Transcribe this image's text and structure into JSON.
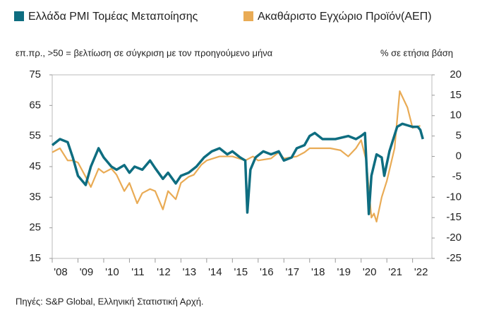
{
  "chart_data": {
    "type": "line",
    "ylabel": "επ.πρ., >50 = βελτίωση σε σύγκριση με τον προηγούμενο μήνα",
    "y2label": "% σε ετήσια βάση",
    "source": "Πηγές: S&P Global, Ελληνική Στατιστική Αρχή.",
    "xlim": [
      2008,
      2022.75
    ],
    "xticks": [
      {
        "value": 2008,
        "label": "'08"
      },
      {
        "value": 2009,
        "label": "'09"
      },
      {
        "value": 2010,
        "label": "'10"
      },
      {
        "value": 2011,
        "label": "'11"
      },
      {
        "value": 2012,
        "label": "'12"
      },
      {
        "value": 2013,
        "label": "'13"
      },
      {
        "value": 2014,
        "label": "'14"
      },
      {
        "value": 2015,
        "label": "'15"
      },
      {
        "value": 2016,
        "label": "'16"
      },
      {
        "value": 2017,
        "label": "'17"
      },
      {
        "value": 2018,
        "label": "'18"
      },
      {
        "value": 2019,
        "label": "'19"
      },
      {
        "value": 2020,
        "label": "'20"
      },
      {
        "value": 2021,
        "label": "'21"
      },
      {
        "value": 2022,
        "label": "'22"
      }
    ],
    "ylim": [
      15,
      75
    ],
    "yticks": [
      75,
      65,
      55,
      45,
      35,
      25,
      15
    ],
    "y2lim": [
      -25,
      20
    ],
    "y2ticks": [
      20,
      15,
      10,
      5,
      0,
      -5,
      -10,
      -15,
      -20,
      -25
    ],
    "grid": false,
    "series": [
      {
        "name": "Ελλάδα PMI Τομέας Μεταποίησης",
        "color": "#0e6d80",
        "x": [
          2008.0,
          2008.3,
          2008.6,
          2008.8,
          2009.0,
          2009.2,
          2009.3,
          2009.5,
          2009.8,
          2010.0,
          2010.3,
          2010.5,
          2010.8,
          2011.0,
          2011.2,
          2011.5,
          2011.8,
          2012.0,
          2012.3,
          2012.5,
          2012.8,
          2013.0,
          2013.3,
          2013.6,
          2013.9,
          2014.2,
          2014.5,
          2014.8,
          2015.0,
          2015.3,
          2015.5,
          2015.58,
          2015.7,
          2015.9,
          2016.2,
          2016.5,
          2016.8,
          2017.0,
          2017.3,
          2017.5,
          2017.8,
          2018.0,
          2018.2,
          2018.5,
          2018.8,
          2019.0,
          2019.5,
          2019.8,
          2020.0,
          2020.15,
          2020.3,
          2020.4,
          2020.6,
          2020.8,
          2020.9,
          2021.1,
          2021.4,
          2021.6,
          2021.8,
          2022.0,
          2022.2,
          2022.3,
          2022.4
        ],
        "values": [
          52,
          54,
          53,
          48,
          42,
          40,
          39,
          45,
          51,
          48,
          45,
          44,
          45.5,
          43,
          45,
          44,
          47,
          44.5,
          41,
          43,
          39.5,
          42,
          43,
          45,
          48,
          50,
          51,
          49,
          50,
          48,
          47,
          30,
          44,
          48,
          50,
          49,
          50,
          47,
          48,
          51,
          52,
          55,
          56,
          54,
          54,
          54,
          55,
          54,
          55,
          56,
          29.5,
          42,
          49,
          48,
          42,
          50,
          58,
          59,
          58.5,
          58,
          58,
          57,
          54
        ]
      },
      {
        "name": "Ακαθάριστο Εγχώριο Προϊόν(ΑΕΠ)",
        "color": "#e9ab55",
        "axis": "y2",
        "x": [
          2008.0,
          2008.3,
          2008.6,
          2008.8,
          2009.0,
          2009.3,
          2009.5,
          2009.8,
          2010.0,
          2010.3,
          2010.5,
          2010.8,
          2011.0,
          2011.3,
          2011.5,
          2011.8,
          2012.0,
          2012.3,
          2012.5,
          2012.8,
          2013.0,
          2013.3,
          2013.5,
          2013.8,
          2014.0,
          2014.5,
          2015.0,
          2015.5,
          2015.8,
          2016.0,
          2016.5,
          2016.8,
          2017.0,
          2017.5,
          2017.8,
          2018.0,
          2018.5,
          2018.8,
          2019.2,
          2019.5,
          2019.8,
          2020.0,
          2020.2,
          2020.4,
          2020.5,
          2020.6,
          2020.8,
          2021.0,
          2021.3,
          2021.5,
          2021.8,
          2022.0,
          2022.3
        ],
        "values": [
          1,
          2,
          -1,
          -1,
          -1.5,
          -5,
          -7.5,
          -3,
          -4,
          -3,
          -4.5,
          -8.5,
          -6.5,
          -11.5,
          -9,
          -8,
          -8.5,
          -13,
          -8.5,
          -10.5,
          -6.5,
          -5,
          -4.5,
          -2,
          -1,
          0,
          0,
          -1,
          0,
          -1,
          -0.5,
          1,
          -0.5,
          0,
          1,
          2,
          2,
          2,
          1.5,
          0,
          2,
          4,
          -1,
          -15,
          -14,
          -16,
          -10,
          -6,
          2,
          16,
          12,
          7,
          7.5
        ]
      }
    ]
  }
}
